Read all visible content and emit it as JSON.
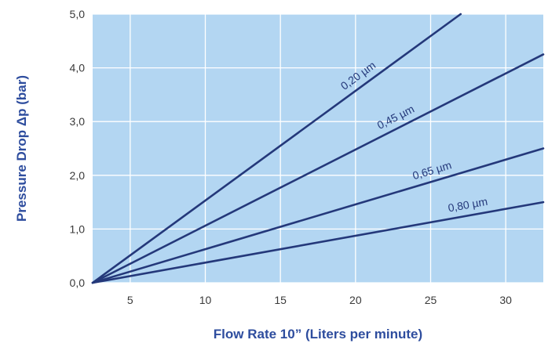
{
  "chart_data": {
    "type": "line",
    "title": "",
    "xlabel": "Flow Rate 10” (Liters per minute)",
    "ylabel": "Pressure Drop Δp (bar)",
    "xlim": [
      2.5,
      32.5
    ],
    "ylim": [
      0,
      5
    ],
    "x_ticks": [
      5,
      10,
      15,
      20,
      25,
      30
    ],
    "x_tick_labels": [
      "5",
      "10",
      "15",
      "20",
      "25",
      "30"
    ],
    "y_ticks": [
      0,
      1,
      2,
      3,
      4,
      5
    ],
    "y_tick_labels": [
      "0,0",
      "1,0",
      "2,0",
      "3,0",
      "4,0",
      "5,0"
    ],
    "grid": true,
    "legend": "none (series labeled inline)",
    "colors": {
      "plot_background": "#b3d6f2",
      "grid": "#ffffff",
      "series": "#24387a",
      "axis_title": "#2e4d9e"
    },
    "series": [
      {
        "name": "0,20 µm",
        "x": [
          2.5,
          27.0
        ],
        "y": [
          0,
          5.0
        ]
      },
      {
        "name": "0,45 µm",
        "x": [
          2.5,
          32.5
        ],
        "y": [
          0,
          4.25
        ]
      },
      {
        "name": "0,65 µm",
        "x": [
          2.5,
          32.5
        ],
        "y": [
          0,
          2.5
        ]
      },
      {
        "name": "0,80 µm",
        "x": [
          2.5,
          32.5
        ],
        "y": [
          0,
          1.5
        ]
      }
    ]
  }
}
